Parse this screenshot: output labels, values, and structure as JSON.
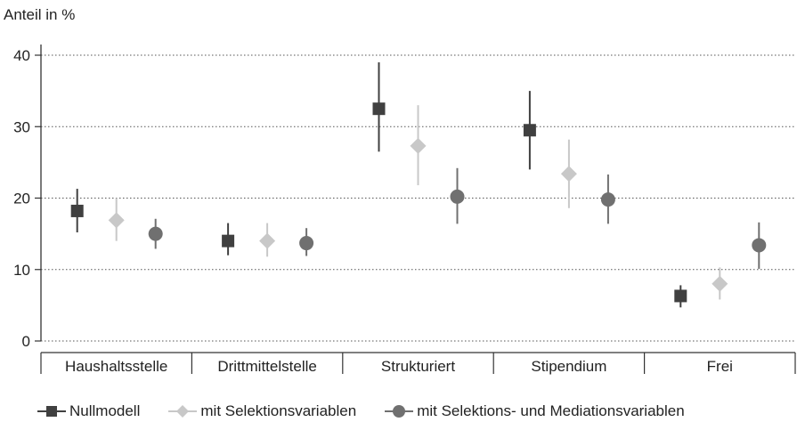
{
  "chart_data": {
    "type": "scatter",
    "ylabel": "Anteil in %",
    "ylim": [
      0,
      40
    ],
    "yticks": [
      0,
      10,
      20,
      30,
      40
    ],
    "grid": "horizontal dotted",
    "categories": [
      "Haushaltsstelle",
      "Drittmittelstelle",
      "Strukturiert",
      "Stipendium",
      "Frei"
    ],
    "series": [
      {
        "name": "Nullmodell",
        "marker": "square",
        "color": "#404040",
        "values": [
          18.2,
          14.0,
          32.5,
          29.5,
          6.3
        ],
        "ci_low": [
          15.2,
          12.0,
          26.5,
          24.0,
          4.7
        ],
        "ci_high": [
          21.3,
          16.5,
          39.0,
          35.0,
          7.8
        ]
      },
      {
        "name": "mit Selektionsvariablen",
        "marker": "diamond",
        "color": "#c8c8c8",
        "values": [
          16.9,
          14.0,
          27.3,
          23.4,
          8.0
        ],
        "ci_low": [
          14.0,
          11.8,
          21.8,
          18.6,
          5.8
        ],
        "ci_high": [
          20.0,
          16.5,
          33.0,
          28.2,
          10.3
        ]
      },
      {
        "name": "mit Selektions- und Mediationsvariablen",
        "marker": "circle",
        "color": "#707070",
        "values": [
          15.0,
          13.7,
          20.2,
          19.8,
          13.4
        ],
        "ci_low": [
          12.9,
          11.9,
          16.4,
          16.4,
          10.1
        ],
        "ci_high": [
          17.1,
          15.8,
          24.2,
          23.3,
          16.6
        ]
      }
    ],
    "legend": "bottom"
  }
}
